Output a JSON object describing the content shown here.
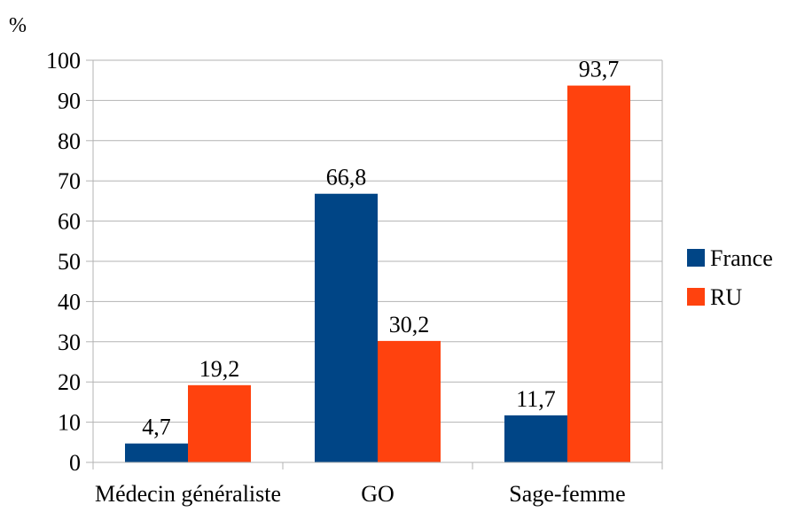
{
  "chart_data": {
    "type": "bar",
    "ylabel": "%",
    "ylim": [
      0,
      100
    ],
    "yticks": [
      0,
      10,
      20,
      30,
      40,
      50,
      60,
      70,
      80,
      90,
      100
    ],
    "grid": true,
    "legend_position": "right",
    "categories": [
      "Médecin généraliste",
      "GO",
      "Sage-femme"
    ],
    "series": [
      {
        "name": "France",
        "color": "#004586",
        "values": [
          4.7,
          66.8,
          11.7
        ],
        "labels": [
          "4,7",
          "66,8",
          "11,7"
        ]
      },
      {
        "name": "RU",
        "color": "#ff420e",
        "values": [
          19.2,
          30.2,
          93.7
        ],
        "labels": [
          "19,2",
          "30,2",
          "93,7"
        ]
      }
    ]
  }
}
